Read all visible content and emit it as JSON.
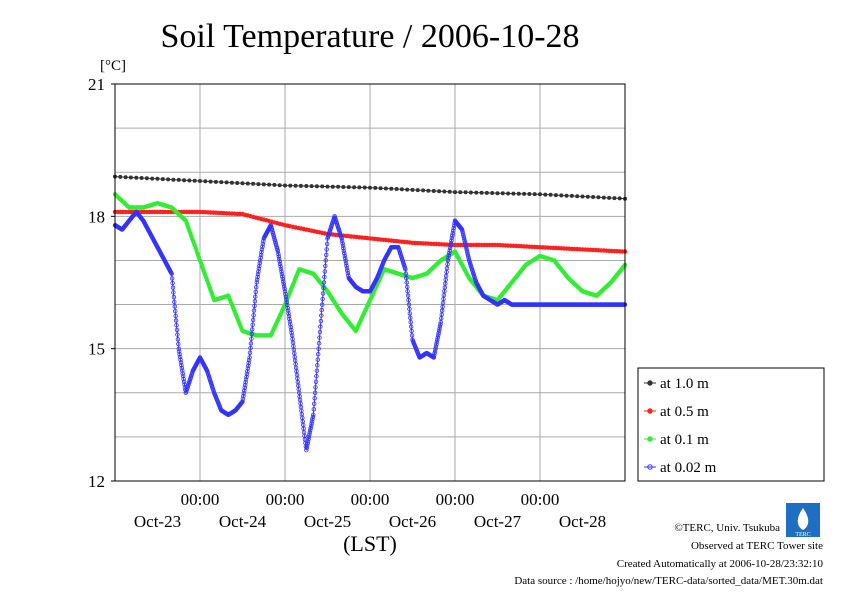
{
  "chart_data": {
    "type": "line",
    "title": "Soil Temperature / 2006-10-28",
    "ylabel": "[°C]",
    "xlabel": "(LST)",
    "ylim": [
      12,
      21
    ],
    "yticks": [
      12,
      15,
      18,
      21
    ],
    "xlim_hours": [
      0,
      144
    ],
    "xticks": [
      {
        "time": "00:00",
        "date": "Oct-24"
      },
      {
        "time": "00:00",
        "date": "Oct-25"
      },
      {
        "time": "00:00",
        "date": "Oct-26"
      },
      {
        "time": "00:00",
        "date": "Oct-27"
      },
      {
        "time": "00:00",
        "date": "Oct-28"
      }
    ],
    "day_labels": [
      "Oct-23",
      "Oct-24",
      "Oct-25",
      "Oct-26",
      "Oct-27",
      "Oct-28"
    ],
    "grid": true,
    "legend_position": "right",
    "series": [
      {
        "name": "at 1.0 m",
        "color": "#333333",
        "x": [
          0,
          24,
          48,
          72,
          96,
          120,
          144
        ],
        "y": [
          18.9,
          18.8,
          18.7,
          18.65,
          18.55,
          18.5,
          18.4
        ]
      },
      {
        "name": "at 0.5 m",
        "color": "#ff2020",
        "x": [
          0,
          12,
          24,
          36,
          48,
          60,
          72,
          84,
          96,
          108,
          120,
          132,
          144
        ],
        "y": [
          18.1,
          18.1,
          18.1,
          18.05,
          17.8,
          17.6,
          17.5,
          17.4,
          17.35,
          17.35,
          17.3,
          17.25,
          17.2
        ]
      },
      {
        "name": "at 0.1 m",
        "color": "#33ee33",
        "x": [
          0,
          4,
          8,
          12,
          16,
          20,
          24,
          28,
          32,
          36,
          40,
          44,
          48,
          52,
          56,
          60,
          64,
          68,
          72,
          76,
          80,
          84,
          88,
          92,
          96,
          100,
          104,
          108,
          112,
          116,
          120,
          124,
          128,
          132,
          136,
          140,
          144
        ],
        "y": [
          18.5,
          18.2,
          18.2,
          18.3,
          18.2,
          17.9,
          17.0,
          16.1,
          16.2,
          15.4,
          15.3,
          15.3,
          16.0,
          16.8,
          16.7,
          16.3,
          15.8,
          15.4,
          16.1,
          16.8,
          16.7,
          16.6,
          16.7,
          17.0,
          17.2,
          16.6,
          16.2,
          16.1,
          16.5,
          16.9,
          17.1,
          17.0,
          16.6,
          16.3,
          16.2,
          16.5,
          16.9
        ]
      },
      {
        "name": "at 0.02 m",
        "color": "#3333ff",
        "x": [
          0,
          2,
          4,
          6,
          8,
          10,
          12,
          14,
          16,
          18,
          20,
          22,
          24,
          26,
          28,
          30,
          32,
          34,
          36,
          38,
          40,
          42,
          44,
          46,
          48,
          50,
          52,
          54,
          56,
          58,
          60,
          62,
          64,
          66,
          68,
          70,
          72,
          74,
          76,
          78,
          80,
          82,
          84,
          86,
          88,
          90,
          92,
          94,
          96,
          98,
          100,
          102,
          104,
          106,
          108,
          110,
          112,
          114,
          116,
          118,
          120,
          122,
          124,
          126,
          128,
          130,
          132,
          134,
          136,
          138,
          140,
          142,
          144
        ],
        "y": [
          17.8,
          17.7,
          17.9,
          18.1,
          17.9,
          17.6,
          17.3,
          17.0,
          16.7,
          15.0,
          14.0,
          14.5,
          14.8,
          14.5,
          14.0,
          13.6,
          13.5,
          13.6,
          13.8,
          14.8,
          16.5,
          17.5,
          17.8,
          17.2,
          16.3,
          15.3,
          14.0,
          12.7,
          13.5,
          15.5,
          17.5,
          18.0,
          17.5,
          16.6,
          16.4,
          16.3,
          16.3,
          16.6,
          17.0,
          17.3,
          17.3,
          16.8,
          15.2,
          14.8,
          14.9,
          14.8,
          15.6,
          17.0,
          17.9,
          17.7,
          17.0,
          16.5,
          16.2,
          16.1,
          16.0,
          16.1,
          16.0,
          16.0,
          16.0,
          16.0,
          16.0,
          16.0,
          16.0,
          16.0,
          16.0,
          16.0,
          16.0,
          16.0,
          16.0,
          16.0,
          16.0,
          16.0,
          16.0
        ]
      }
    ]
  },
  "footer": {
    "copyright": "©TERC, Univ. Tsukuba",
    "observed": "Observed at TERC Tower site",
    "created": "Created Automatically at 2006-10-28/23:32:10",
    "source": "Data source : /home/hojyo/new/TERC-data/sorted_data/MET.30m.dat",
    "logo_text": "TERC"
  }
}
